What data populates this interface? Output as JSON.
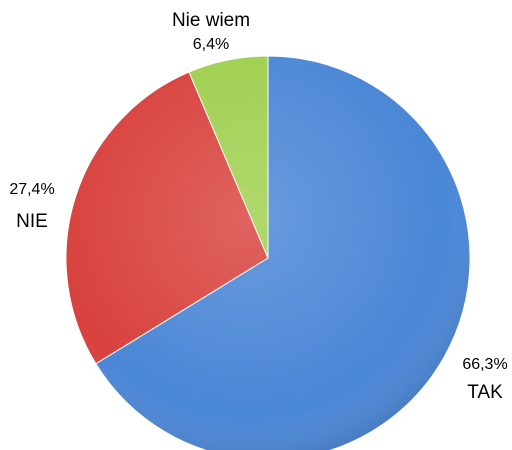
{
  "chart_data": {
    "type": "pie",
    "categories": [
      "TAK",
      "NIE",
      "Nie wiem"
    ],
    "values": [
      66.3,
      27.4,
      6.4
    ],
    "value_labels": [
      "66,3%",
      "27,4%",
      "6,4%"
    ],
    "colors": [
      "#4a86d6",
      "#d8413d",
      "#9fcf4e"
    ]
  }
}
